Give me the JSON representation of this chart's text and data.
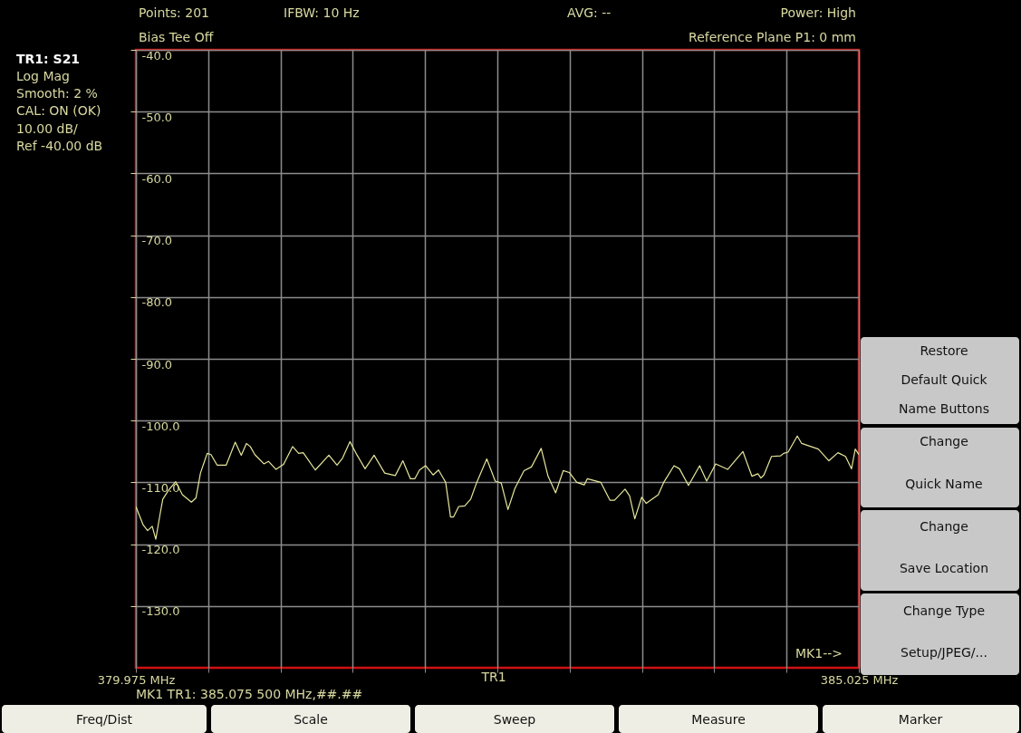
{
  "chart_data": {
    "type": "line",
    "x": [
      379.975,
      380.026,
      380.057,
      380.089,
      380.114,
      380.142,
      380.163,
      380.205,
      380.253,
      380.3,
      380.363,
      380.395,
      380.426,
      380.473,
      380.5,
      380.542,
      380.606,
      380.669,
      380.711,
      380.747,
      380.774,
      380.806,
      380.869,
      380.901,
      380.954,
      381.006,
      381.07,
      381.112,
      381.144,
      381.228,
      381.323,
      381.38,
      381.418,
      381.47,
      381.513,
      381.576,
      381.639,
      381.713,
      381.787,
      381.84,
      381.892,
      381.924,
      381.956,
      381.998,
      382.051,
      382.089,
      382.124,
      382.139,
      382.173,
      382.194,
      382.23,
      382.272,
      382.314,
      382.356,
      382.426,
      382.485,
      382.527,
      382.574,
      382.622,
      382.686,
      382.738,
      382.806,
      382.854,
      382.907,
      382.96,
      383.002,
      383.055,
      383.107,
      383.129,
      383.223,
      383.287,
      383.318,
      383.392,
      383.424,
      383.46,
      383.508,
      383.54,
      383.624,
      383.662,
      383.734,
      383.772,
      383.835,
      383.913,
      383.962,
      384.025,
      384.109,
      384.215,
      384.278,
      384.32,
      384.341,
      384.362,
      384.415,
      384.479,
      384.5,
      384.531,
      384.595,
      384.626,
      384.742,
      384.816,
      384.879,
      384.932,
      384.974,
      385.0,
      385.025
    ],
    "series": [
      {
        "color": "#e6e69c",
        "values": [
          -113.9,
          -116.9,
          -117.8,
          -117.1,
          -119.2,
          -115.4,
          -112.7,
          -111.2,
          -109.9,
          -112.0,
          -113.2,
          -112.5,
          -108.5,
          -105.3,
          -105.5,
          -107.2,
          -107.2,
          -103.5,
          -105.6,
          -103.7,
          -104.2,
          -105.5,
          -107.0,
          -106.6,
          -107.9,
          -107.1,
          -104.2,
          -105.3,
          -105.2,
          -108.0,
          -105.6,
          -107.2,
          -106.1,
          -103.4,
          -105.3,
          -107.8,
          -105.6,
          -108.5,
          -108.9,
          -106.5,
          -109.4,
          -109.4,
          -108.0,
          -107.3,
          -108.8,
          -108.0,
          -109.4,
          -110.0,
          -115.6,
          -115.6,
          -113.9,
          -113.8,
          -112.7,
          -110.0,
          -106.2,
          -109.8,
          -110.1,
          -114.4,
          -111.0,
          -108.1,
          -107.5,
          -104.5,
          -109.0,
          -111.7,
          -108.1,
          -108.4,
          -110.0,
          -110.4,
          -109.4,
          -110.0,
          -112.9,
          -112.9,
          -111.1,
          -112.2,
          -115.9,
          -112.4,
          -113.4,
          -112.0,
          -110.0,
          -107.3,
          -107.8,
          -110.5,
          -107.3,
          -109.8,
          -107.0,
          -107.9,
          -105.0,
          -109.0,
          -108.6,
          -109.3,
          -108.8,
          -105.8,
          -105.7,
          -105.3,
          -105.1,
          -102.5,
          -103.7,
          -104.6,
          -106.5,
          -105.2,
          -105.8,
          -107.8,
          -104.6,
          -105.5
        ]
      }
    ],
    "xlim": [
      379.975,
      385.025
    ],
    "xticks": [
      {
        "value": 379.975,
        "label": "379.975 MHz"
      },
      {
        "value": 380.48,
        "label": null
      },
      {
        "value": 380.985,
        "label": null
      },
      {
        "value": 381.49,
        "label": null
      },
      {
        "value": 381.995,
        "label": null
      },
      {
        "value": 382.5,
        "label": null
      },
      {
        "value": 383.005,
        "label": null
      },
      {
        "value": 383.51,
        "label": null
      },
      {
        "value": 384.015,
        "label": null
      },
      {
        "value": 384.52,
        "label": null
      },
      {
        "value": 385.025,
        "label": "385.025 MHz"
      }
    ],
    "ylim": [
      -140,
      -40
    ],
    "yticks": [
      {
        "value": -40,
        "label": "-40.0"
      },
      {
        "value": -50,
        "label": "-50.0"
      },
      {
        "value": -60,
        "label": "-60.0"
      },
      {
        "value": -70,
        "label": "-70.0"
      },
      {
        "value": -80,
        "label": "-80.0"
      },
      {
        "value": -90,
        "label": "-90.0"
      },
      {
        "value": -100,
        "label": "-100.0"
      },
      {
        "value": -110,
        "label": "-110.0"
      },
      {
        "value": -120,
        "label": "-120.0"
      },
      {
        "value": -130,
        "label": "-130.0"
      }
    ],
    "grid": true,
    "line_style": "solid",
    "annotations": [
      "Points: 201",
      "IFBW: 10 Hz",
      "AVG: --",
      "Power: High",
      "Bias Tee Off",
      "Reference Plane P1: 0 mm",
      "TR1: S21",
      "Log Mag",
      "Smooth: 2 %",
      "CAL: ON (OK)",
      "10.00 dB/",
      "Ref -40.00 dB",
      "TR1",
      "MK1 TR1:  385.075 500 MHz,##.##",
      "MK1-->",
      "Restore",
      "Default Quick",
      "Name Buttons",
      "Change",
      "Quick Name",
      "Change",
      "Save Location",
      "Change Type",
      "Setup/JPEG/...",
      "Freq/Dist",
      "Scale",
      "Sweep",
      "Measure",
      "Marker"
    ]
  }
}
